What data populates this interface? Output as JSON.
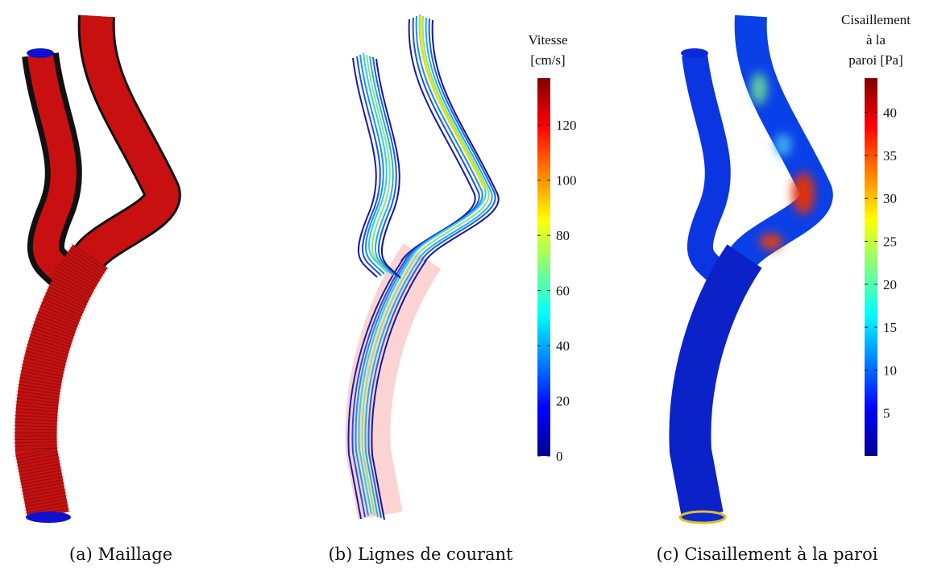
{
  "figure": {
    "panels": [
      {
        "caption": "(a) Maillage"
      },
      {
        "caption": "(b) Lignes de courant",
        "colorbar": {
          "title": [
            "Vitesse",
            "[cm/s]"
          ],
          "range": [
            0,
            137
          ],
          "ticks": [
            0,
            20,
            40,
            60,
            80,
            100,
            120
          ]
        }
      },
      {
        "caption": "(c) Cisaillement à la paroi",
        "colorbar": {
          "title": [
            "Cisaillement",
            "à la",
            "paroi [Pa]"
          ],
          "range": [
            0,
            44
          ],
          "ticks": [
            5,
            10,
            15,
            20,
            25,
            30,
            35,
            40
          ]
        }
      }
    ]
  }
}
